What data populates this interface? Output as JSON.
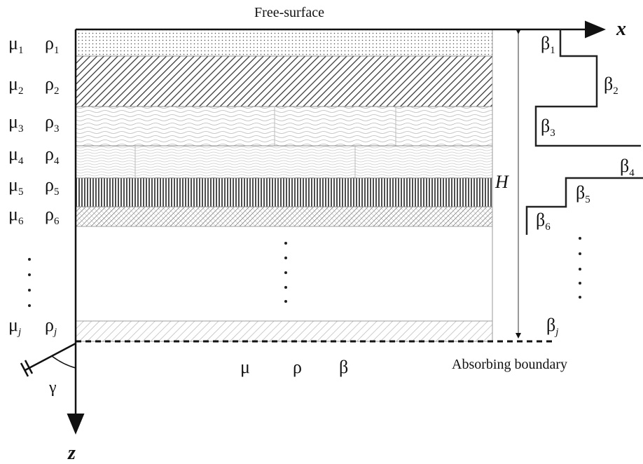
{
  "title": "Free-surface",
  "axes": {
    "x": "x",
    "z": "z"
  },
  "depth_label": "H",
  "angle_label": "γ",
  "boundary_label": "Absorbing boundary",
  "layers": [
    {
      "mu": "μ",
      "mu_sub": "1",
      "rho": "ρ",
      "rho_sub": "1",
      "beta": "β",
      "beta_sub": "1"
    },
    {
      "mu": "μ",
      "mu_sub": "2",
      "rho": "ρ",
      "rho_sub": "2",
      "beta": "β",
      "beta_sub": "2"
    },
    {
      "mu": "μ",
      "mu_sub": "3",
      "rho": "ρ",
      "rho_sub": "3",
      "beta": "β",
      "beta_sub": "3"
    },
    {
      "mu": "μ",
      "mu_sub": "4",
      "rho": "ρ",
      "rho_sub": "4",
      "beta": "β",
      "beta_sub": "4"
    },
    {
      "mu": "μ",
      "mu_sub": "5",
      "rho": "ρ",
      "rho_sub": "5",
      "beta": "β",
      "beta_sub": "5"
    },
    {
      "mu": "μ",
      "mu_sub": "6",
      "rho": "ρ",
      "rho_sub": "6",
      "beta": "β",
      "beta_sub": "6"
    },
    {
      "mu": "μ",
      "mu_sub": "j",
      "rho": "ρ",
      "rho_sub": "j",
      "beta": "β",
      "beta_sub": "j"
    }
  ],
  "half_space": {
    "mu": "μ",
    "rho": "ρ",
    "beta": "β"
  }
}
